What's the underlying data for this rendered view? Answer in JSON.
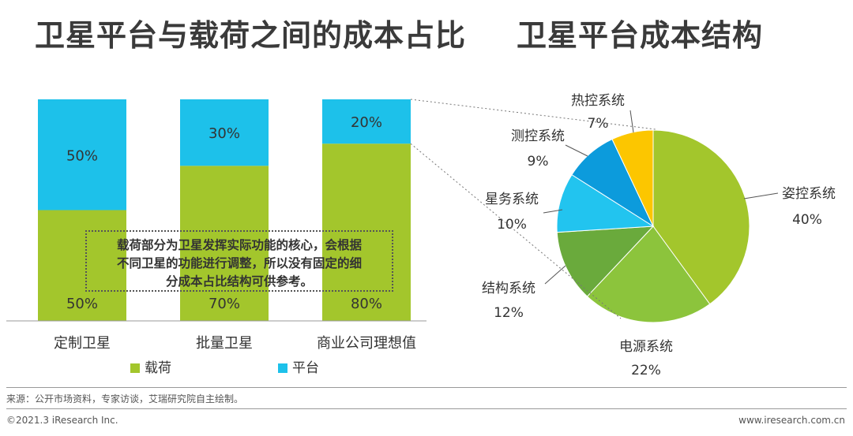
{
  "titles": {
    "left": "卫星平台与载荷之间的成本占比",
    "right": "卫星平台成本结构"
  },
  "colors": {
    "payload": "#a3c62c",
    "platform": "#1dc1ea",
    "connector": "#777777"
  },
  "chart_data": [
    {
      "type": "bar",
      "stacked": true,
      "percent": true,
      "categories": [
        "定制卫星",
        "批量卫星",
        "商业公司理想值"
      ],
      "series": [
        {
          "name": "载荷",
          "values": [
            50,
            70,
            80
          ],
          "labels": [
            "50%",
            "70%",
            "80%"
          ],
          "color": "#a3c62c"
        },
        {
          "name": "平台",
          "values": [
            50,
            30,
            20
          ],
          "labels": [
            "50%",
            "30%",
            "20%"
          ],
          "color": "#1dc1ea"
        }
      ],
      "ylim": [
        0,
        100
      ],
      "grid": false,
      "legend": "bottom"
    },
    {
      "type": "pie",
      "slices": [
        {
          "name": "姿控系统",
          "value": 40,
          "label": "40%",
          "color": "#a3c62c"
        },
        {
          "name": "电源系统",
          "value": 22,
          "label": "22%",
          "color": "#8cc43c"
        },
        {
          "name": "结构系统",
          "value": 12,
          "label": "12%",
          "color": "#6aaa3c"
        },
        {
          "name": "星务系统",
          "value": 10,
          "label": "10%",
          "color": "#22c4ef"
        },
        {
          "name": "测控系统",
          "value": 9,
          "label": "9%",
          "color": "#0c9bdc"
        },
        {
          "name": "热控系统",
          "value": 7,
          "label": "7%",
          "color": "#fcc600"
        }
      ]
    }
  ],
  "note": {
    "lines": [
      "载荷部分为卫星发挥实际功能的核心，会根据",
      "不同卫星的功能进行调整，所以没有固定的细",
      "分成本占比结构可供参考。"
    ]
  },
  "legend": {
    "payload": "载荷",
    "platform": "平台"
  },
  "footer": {
    "source": "来源：公开市场资料，专家访谈，艾瑞研究院自主绘制。",
    "copyright": "©2021.3 iResearch Inc.",
    "website": "www.iresearch.com.cn"
  }
}
